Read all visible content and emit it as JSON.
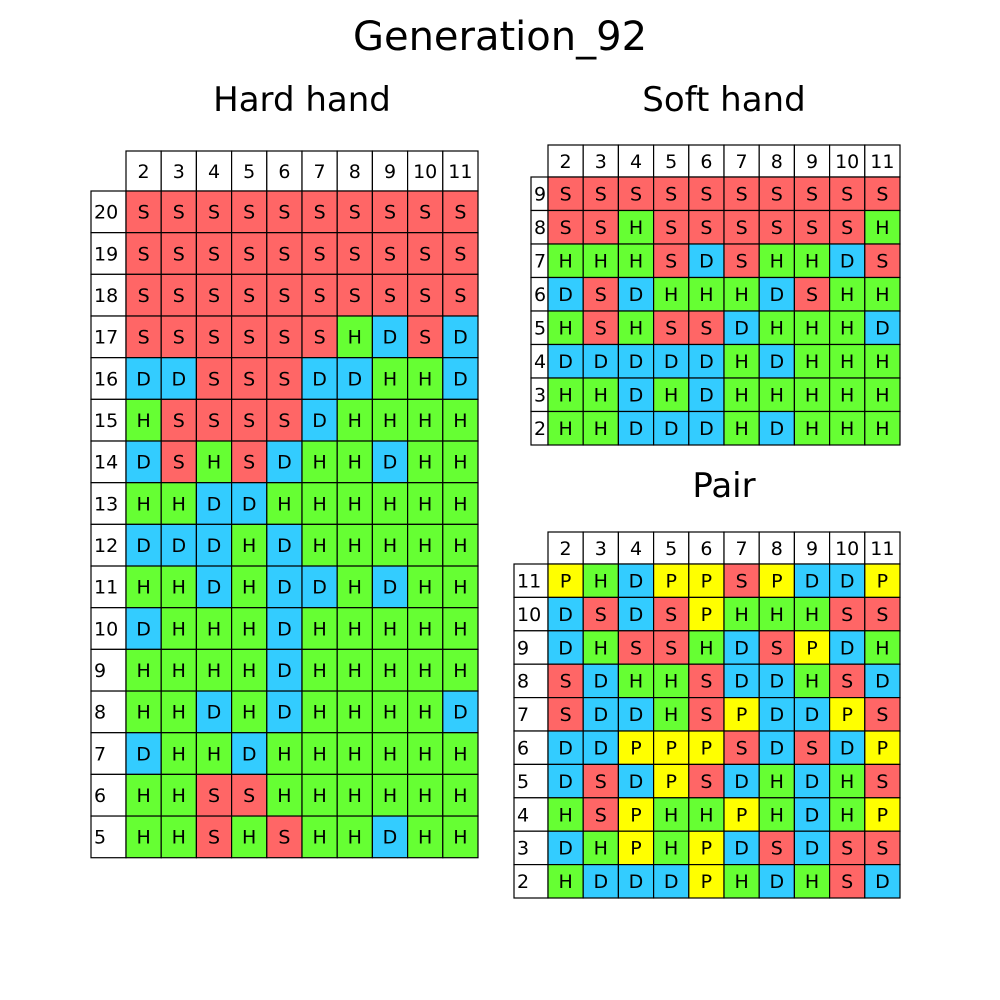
{
  "title": "Generation_92",
  "colors": {
    "S": "#ff6666",
    "H": "#66ff33",
    "D": "#33ccff",
    "P": "#ffff00",
    "header": "#ffffff",
    "grid": "#000000"
  },
  "chart_data": [
    {
      "type": "table",
      "title": "Hard hand",
      "columns": [
        "2",
        "3",
        "4",
        "5",
        "6",
        "7",
        "8",
        "9",
        "10",
        "11"
      ],
      "rows": [
        "20",
        "19",
        "18",
        "17",
        "16",
        "15",
        "14",
        "13",
        "12",
        "11",
        "10",
        "9",
        "8",
        "7",
        "6",
        "5"
      ],
      "cells": [
        [
          "S",
          "S",
          "S",
          "S",
          "S",
          "S",
          "S",
          "S",
          "S",
          "S"
        ],
        [
          "S",
          "S",
          "S",
          "S",
          "S",
          "S",
          "S",
          "S",
          "S",
          "S"
        ],
        [
          "S",
          "S",
          "S",
          "S",
          "S",
          "S",
          "S",
          "S",
          "S",
          "S"
        ],
        [
          "S",
          "S",
          "S",
          "S",
          "S",
          "S",
          "H",
          "D",
          "S",
          "D"
        ],
        [
          "D",
          "D",
          "S",
          "S",
          "S",
          "D",
          "D",
          "H",
          "H",
          "D"
        ],
        [
          "H",
          "S",
          "S",
          "S",
          "S",
          "D",
          "H",
          "H",
          "H",
          "H"
        ],
        [
          "D",
          "S",
          "H",
          "S",
          "D",
          "H",
          "H",
          "D",
          "H",
          "H"
        ],
        [
          "H",
          "H",
          "D",
          "D",
          "H",
          "H",
          "H",
          "H",
          "H",
          "H"
        ],
        [
          "D",
          "D",
          "D",
          "H",
          "D",
          "H",
          "H",
          "H",
          "H",
          "H"
        ],
        [
          "H",
          "H",
          "D",
          "H",
          "D",
          "D",
          "H",
          "D",
          "H",
          "H"
        ],
        [
          "D",
          "H",
          "H",
          "H",
          "D",
          "H",
          "H",
          "H",
          "H",
          "H"
        ],
        [
          "H",
          "H",
          "H",
          "H",
          "D",
          "H",
          "H",
          "H",
          "H",
          "H"
        ],
        [
          "H",
          "H",
          "D",
          "H",
          "D",
          "H",
          "H",
          "H",
          "H",
          "D"
        ],
        [
          "D",
          "H",
          "H",
          "D",
          "H",
          "H",
          "H",
          "H",
          "H",
          "H"
        ],
        [
          "H",
          "H",
          "S",
          "S",
          "H",
          "H",
          "H",
          "H",
          "H",
          "H"
        ],
        [
          "H",
          "H",
          "S",
          "H",
          "S",
          "H",
          "H",
          "D",
          "H",
          "H"
        ]
      ]
    },
    {
      "type": "table",
      "title": "Soft hand",
      "columns": [
        "2",
        "3",
        "4",
        "5",
        "6",
        "7",
        "8",
        "9",
        "10",
        "11"
      ],
      "rows": [
        "9",
        "8",
        "7",
        "6",
        "5",
        "4",
        "3",
        "2"
      ],
      "cells": [
        [
          "S",
          "S",
          "S",
          "S",
          "S",
          "S",
          "S",
          "S",
          "S",
          "S"
        ],
        [
          "S",
          "S",
          "H",
          "S",
          "S",
          "S",
          "S",
          "S",
          "S",
          "H"
        ],
        [
          "H",
          "H",
          "H",
          "S",
          "D",
          "S",
          "H",
          "H",
          "D",
          "S"
        ],
        [
          "D",
          "S",
          "D",
          "H",
          "H",
          "H",
          "D",
          "S",
          "H",
          "H"
        ],
        [
          "H",
          "S",
          "H",
          "S",
          "S",
          "D",
          "H",
          "H",
          "H",
          "D"
        ],
        [
          "D",
          "D",
          "D",
          "D",
          "D",
          "H",
          "D",
          "H",
          "H",
          "H"
        ],
        [
          "H",
          "H",
          "D",
          "H",
          "D",
          "H",
          "H",
          "H",
          "H",
          "H"
        ],
        [
          "H",
          "H",
          "D",
          "D",
          "D",
          "H",
          "D",
          "H",
          "H",
          "H"
        ]
      ]
    },
    {
      "type": "table",
      "title": "Pair",
      "columns": [
        "2",
        "3",
        "4",
        "5",
        "6",
        "7",
        "8",
        "9",
        "10",
        "11"
      ],
      "rows": [
        "11",
        "10",
        "9",
        "8",
        "7",
        "6",
        "5",
        "4",
        "3",
        "2"
      ],
      "cells": [
        [
          "P",
          "H",
          "D",
          "P",
          "P",
          "S",
          "P",
          "D",
          "D",
          "P"
        ],
        [
          "D",
          "S",
          "D",
          "S",
          "P",
          "H",
          "H",
          "H",
          "S",
          "S"
        ],
        [
          "D",
          "H",
          "S",
          "S",
          "H",
          "D",
          "S",
          "P",
          "D",
          "H"
        ],
        [
          "S",
          "D",
          "H",
          "H",
          "S",
          "D",
          "D",
          "H",
          "S",
          "D"
        ],
        [
          "S",
          "D",
          "D",
          "H",
          "S",
          "P",
          "D",
          "D",
          "P",
          "S"
        ],
        [
          "D",
          "D",
          "P",
          "P",
          "P",
          "S",
          "D",
          "S",
          "D",
          "P"
        ],
        [
          "D",
          "S",
          "D",
          "P",
          "S",
          "D",
          "H",
          "D",
          "H",
          "S"
        ],
        [
          "H",
          "S",
          "P",
          "H",
          "H",
          "P",
          "H",
          "D",
          "H",
          "P"
        ],
        [
          "D",
          "H",
          "P",
          "H",
          "P",
          "D",
          "S",
          "D",
          "S",
          "S"
        ],
        [
          "H",
          "D",
          "D",
          "D",
          "P",
          "H",
          "D",
          "H",
          "S",
          "D"
        ]
      ]
    }
  ]
}
